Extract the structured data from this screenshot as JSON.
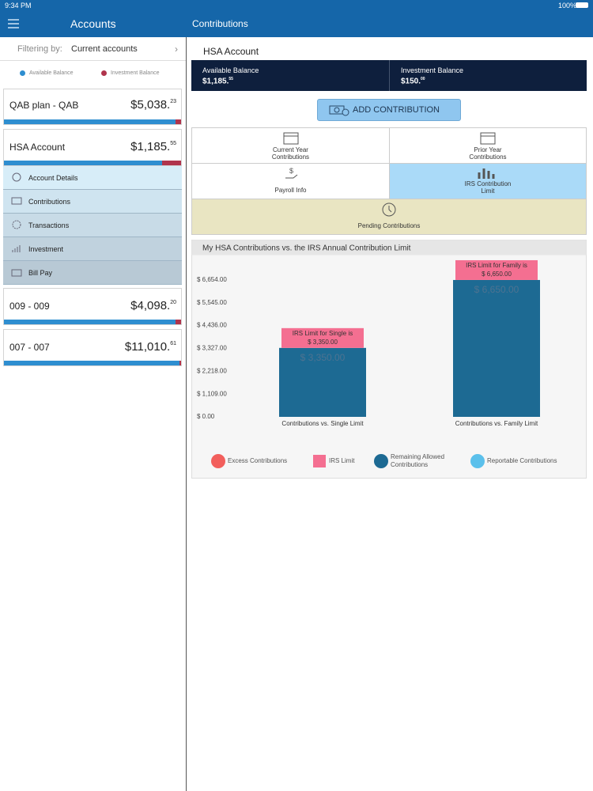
{
  "status_bar": {
    "time": "9:34 PM",
    "battery": "100%"
  },
  "nav": {
    "left_title": "Accounts",
    "right_title": "Contributions"
  },
  "filter": {
    "label": "Filtering by:",
    "value": "Current accounts"
  },
  "balance_legend": [
    "Available Balance",
    "Investment Balance"
  ],
  "accounts": [
    {
      "name": "QAB plan - QAB",
      "amount": "$5,038.",
      "cents": "23"
    },
    {
      "name": "HSA Account",
      "amount": "$1,185.",
      "cents": "55"
    },
    {
      "name": "009 - 009",
      "amount": "$4,098.",
      "cents": "20"
    },
    {
      "name": "007 - 007",
      "amount": "$11,010.",
      "cents": "61"
    }
  ],
  "menu": [
    "Account Details",
    "Contributions",
    "Transactions",
    "Investment",
    "Bill Pay"
  ],
  "hsa": {
    "title": "HSA Account",
    "available_label": "Available Balance",
    "available": "$1,185.",
    "available_cents": "55",
    "investment_label": "Investment Balance",
    "investment": "$150.",
    "investment_cents": "00"
  },
  "add_button": "ADD CONTRIBUTION",
  "tiles": [
    "Current Year Contributions",
    "Prior Year Contributions",
    "Payroll Info",
    "IRS Contribution Limit",
    "Pending Contributions"
  ],
  "chart_data": {
    "type": "bar",
    "title": "My HSA Contributions vs. the IRS Annual Contribution Limit",
    "categories": [
      "Contributions vs. Single Limit",
      "Contributions vs. Family Limit"
    ],
    "series": [
      {
        "name": "Remaining Allowed Contributions",
        "color": "#1d6a93",
        "values": [
          3350,
          6650
        ],
        "value_labels": [
          "$ 3,350.00",
          "$ 6,650.00"
        ]
      }
    ],
    "annotations": [
      {
        "text": "IRS Limit for Single is",
        "value_label": "$ 3,350.00",
        "color": "#f46f91"
      },
      {
        "text": "IRS Limit for Family is",
        "value_label": "$ 6,650.00",
        "color": "#f46f91"
      }
    ],
    "ylim": [
      0,
      7763
    ],
    "yticks": [
      {
        "value": 0,
        "label": "$ 0.00"
      },
      {
        "value": 1109,
        "label": "$ 1,109.00"
      },
      {
        "value": 2218,
        "label": "$ 2,218.00"
      },
      {
        "value": 3327,
        "label": "$ 3,327.00"
      },
      {
        "value": 4436,
        "label": "$ 4,436.00"
      },
      {
        "value": 5545,
        "label": "$ 5,545.00"
      },
      {
        "value": 6654,
        "label": "$ 6,654.00"
      }
    ],
    "grid": false,
    "legend": [
      {
        "name": "Excess Contributions",
        "color": "#f25f5c",
        "shape": "circle"
      },
      {
        "name": "IRS Limit",
        "color": "#f46f91",
        "shape": "square"
      },
      {
        "name": "Remaining Allowed Contributions",
        "color": "#1d6a93",
        "shape": "circle"
      },
      {
        "name": "Reportable Contributions",
        "color": "#5bc0eb",
        "shape": "circle"
      }
    ]
  }
}
